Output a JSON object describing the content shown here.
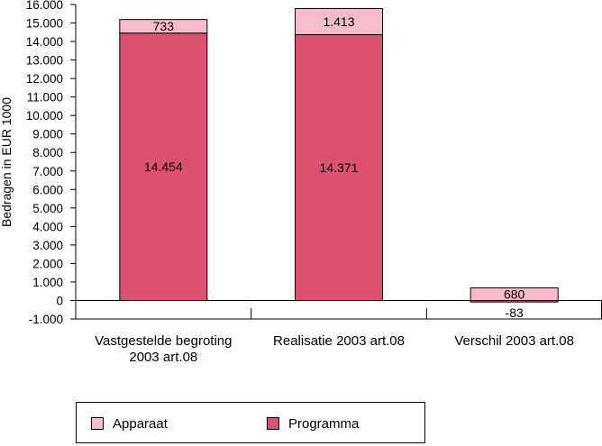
{
  "chart_data": {
    "type": "stacked-bar",
    "title": "",
    "ylabel": "Bedragen in EUR 1000",
    "xlabel": "",
    "ylim": [
      -1000,
      16000
    ],
    "yticks": [
      -1000,
      0,
      1000,
      2000,
      3000,
      4000,
      5000,
      6000,
      7000,
      8000,
      9000,
      10000,
      11000,
      12000,
      13000,
      14000,
      15000,
      16000
    ],
    "ytick_labels": [
      "-1.000",
      "0",
      "1.000",
      "2.000",
      "3.000",
      "4.000",
      "5.000",
      "6.000",
      "7.000",
      "8.000",
      "9.000",
      "10.000",
      "11.000",
      "12.000",
      "13.000",
      "14.000",
      "15.000",
      "16.000"
    ],
    "categories": [
      [
        "Vastgestelde begroting",
        "2003 art.08"
      ],
      [
        "Realisatie 2003 art.08"
      ],
      [
        "Verschil 2003 art.08"
      ]
    ],
    "series": [
      {
        "name": "Programma",
        "color": "#dc5070",
        "values": [
          14454,
          14371,
          -83
        ],
        "labels": [
          "14.454",
          "14.371",
          "-83"
        ]
      },
      {
        "name": "Apparaat",
        "color": "#f5bccb",
        "values": [
          733,
          1413,
          680
        ],
        "labels": [
          "733",
          "1.413",
          "680"
        ]
      }
    ],
    "grid": false,
    "legend": {
      "position": "bottom",
      "entries": [
        "Apparaat",
        "Programma"
      ]
    }
  }
}
